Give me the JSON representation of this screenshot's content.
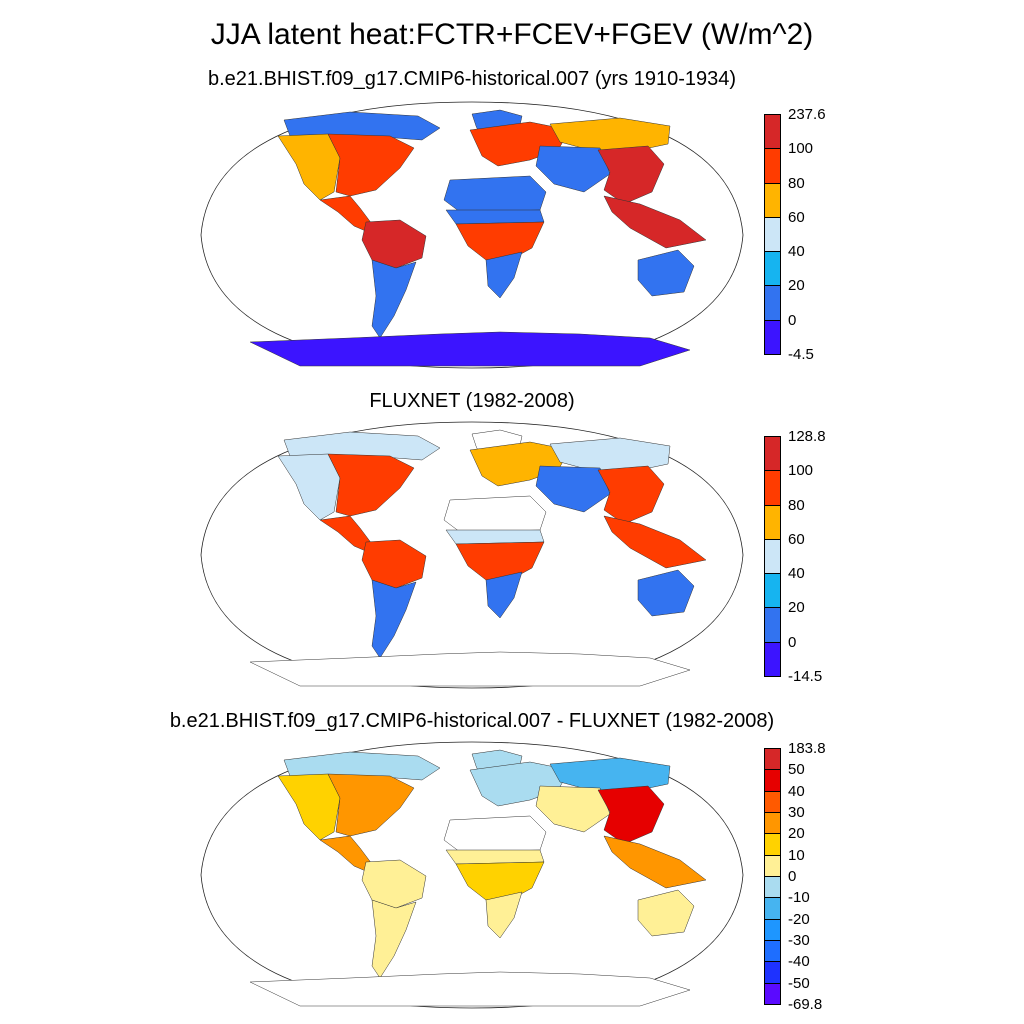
{
  "title": "JJA latent heat:FCTR+FCEV+FGEV (W/m^2)",
  "panels": [
    {
      "title": "b.e21.BHIST.f09_g17.CMIP6-historical.007 (yrs 1910-1934)",
      "colorbar": {
        "labels": [
          "237.6",
          "100",
          "80",
          "60",
          "40",
          "20",
          "0",
          "-4.5"
        ],
        "colors": [
          "#d62728",
          "#ff3c00",
          "#ffb400",
          "#cce6f7",
          "#16b4f0",
          "#3273f0",
          "#3c14ff"
        ]
      },
      "regions": {
        "na_west": "#ffb400",
        "na_east": "#ff3c00",
        "na_north": "#3273f0",
        "central_america": "#ff3c00",
        "amazon": "#d62728",
        "sa_south": "#3273f0",
        "sahara": "#3273f0",
        "sahel": "#3273f0",
        "central_africa": "#ff3c00",
        "southern_africa": "#3273f0",
        "europe": "#ff3c00",
        "siberia": "#ffb400",
        "central_asia": "#3273f0",
        "east_asia": "#d62728",
        "se_asia": "#d62728",
        "australia": "#3273f0",
        "greenland": "#3273f0",
        "antarctica": "#3c14ff"
      }
    },
    {
      "title": "FLUXNET (1982-2008)",
      "colorbar": {
        "labels": [
          "128.8",
          "100",
          "80",
          "60",
          "40",
          "20",
          "0",
          "-14.5"
        ],
        "colors": [
          "#d62728",
          "#ff3c00",
          "#ffb400",
          "#cce6f7",
          "#16b4f0",
          "#3273f0",
          "#3c14ff"
        ]
      },
      "regions": {
        "na_west": "#cce6f7",
        "na_east": "#ff3c00",
        "na_north": "#cce6f7",
        "central_america": "#ff3c00",
        "amazon": "#ff3c00",
        "sa_south": "#3273f0",
        "sahara": "#ffffff",
        "sahel": "#cce6f7",
        "central_africa": "#ff3c00",
        "southern_africa": "#3273f0",
        "europe": "#ffb400",
        "siberia": "#cce6f7",
        "central_asia": "#3273f0",
        "east_asia": "#ff3c00",
        "se_asia": "#ff3c00",
        "australia": "#3273f0",
        "greenland": "#ffffff",
        "antarctica": "#ffffff"
      }
    },
    {
      "title": "b.e21.BHIST.f09_g17.CMIP6-historical.007 - FLUXNET (1982-2008)",
      "colorbar": {
        "labels": [
          "183.8",
          "50",
          "40",
          "30",
          "20",
          "10",
          "0",
          "-10",
          "-20",
          "-30",
          "-40",
          "-50",
          "-69.8"
        ],
        "colors": [
          "#d62728",
          "#e60000",
          "#ff5a00",
          "#ff9600",
          "#ffd200",
          "#fff096",
          "#aadcf0",
          "#46b4f0",
          "#1e96ff",
          "#1e6eff",
          "#1e32ff",
          "#5a0aff"
        ]
      },
      "regions": {
        "na_west": "#ffd200",
        "na_east": "#ff9600",
        "na_north": "#aadcf0",
        "central_america": "#ff9600",
        "amazon": "#fff096",
        "sa_south": "#fff096",
        "sahara": "#ffffff",
        "sahel": "#fff096",
        "central_africa": "#ffd200",
        "southern_africa": "#fff096",
        "europe": "#aadcf0",
        "siberia": "#46b4f0",
        "central_asia": "#fff096",
        "east_asia": "#e60000",
        "se_asia": "#ff9600",
        "australia": "#fff096",
        "greenland": "#aadcf0",
        "antarctica": "#ffffff"
      }
    }
  ]
}
